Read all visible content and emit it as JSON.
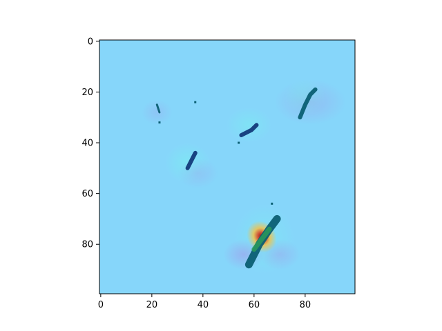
{
  "figure": {
    "background": "#ffffff",
    "frame_color": "#000000"
  },
  "chart_data": {
    "type": "heatmap",
    "title": "",
    "xlabel": "",
    "ylabel": "",
    "xlim": [
      -0.5,
      99.5
    ],
    "ylim": [
      99.5,
      -0.5
    ],
    "y_inverted": true,
    "grid": false,
    "legend": "none",
    "x_ticks": [
      0,
      20,
      40,
      60,
      80
    ],
    "y_ticks": [
      0,
      20,
      40,
      60,
      80
    ],
    "x_tick_labels": [
      "0",
      "20",
      "40",
      "60",
      "80"
    ],
    "y_tick_labels": [
      "0",
      "20",
      "40",
      "60",
      "80"
    ],
    "colors": {
      "background": "#86d6fa",
      "dark_teal": "#0b5f73",
      "dark_blue": "#123a7a",
      "green": "#2a9a5a",
      "yellow_orange": "#f2c14a",
      "red": "#d2452d",
      "dark_red": "#7a1a12",
      "violet": "#a78ee8",
      "light_violet": "#b7b0f2",
      "cyan_halo": "#79f0f0"
    },
    "features": [
      {
        "name": "streak-top-right",
        "kind": "streak",
        "points": [
          [
            78,
            30
          ],
          [
            80,
            25
          ],
          [
            82,
            21
          ],
          [
            84,
            19
          ]
        ],
        "color": "dark_teal"
      },
      {
        "name": "streak-mid-right",
        "kind": "streak",
        "points": [
          [
            55,
            37
          ],
          [
            59,
            35
          ],
          [
            61,
            33
          ]
        ],
        "color": "dark_blue"
      },
      {
        "name": "streak-left",
        "kind": "streak",
        "points": [
          [
            34,
            50
          ],
          [
            36,
            46
          ],
          [
            37,
            44
          ]
        ],
        "color": "dark_blue"
      },
      {
        "name": "streak-small-left",
        "kind": "streak",
        "points": [
          [
            22,
            25
          ],
          [
            23,
            28
          ]
        ],
        "color": "dark_teal"
      },
      {
        "name": "streak-bottom",
        "kind": "streak",
        "points": [
          [
            58,
            88
          ],
          [
            62,
            80
          ],
          [
            66,
            74
          ],
          [
            69,
            70
          ]
        ],
        "color": "dark_teal"
      },
      {
        "name": "hotspot-bottom",
        "kind": "hotspot",
        "center": [
          63,
          77
        ],
        "color": "red"
      }
    ]
  }
}
